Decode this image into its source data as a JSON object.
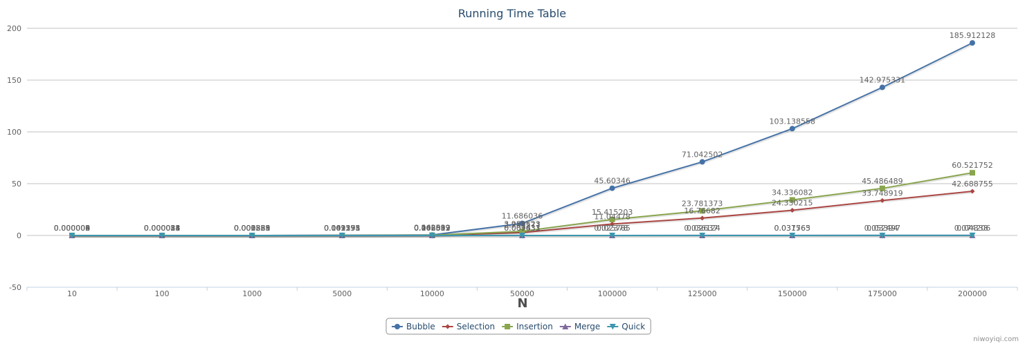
{
  "chart_data": {
    "type": "line",
    "title": "Running Time Table",
    "xlabel": "N",
    "ylabel": "",
    "categories": [
      "10",
      "100",
      "1000",
      "5000",
      "10000",
      "50000",
      "100000",
      "125000",
      "150000",
      "175000",
      "200000"
    ],
    "ylim": [
      -50,
      200
    ],
    "yticks": [
      "-50",
      "0",
      "50",
      "100",
      "150",
      "200"
    ],
    "grid": true,
    "legend_position": "bottom-center",
    "series": [
      {
        "name": "Bubble",
        "color": "#4572A7",
        "marker": "circle",
        "values": [
          9e-06,
          8.8e-05,
          0.006885,
          0.109555,
          0.463039,
          11.686036,
          45.60346,
          71.042502,
          103.138558,
          142.975331,
          185.912128
        ],
        "labels": [
          "0.000009",
          "0.000088",
          "0.006885",
          "0.109555",
          "0.463039",
          "11.686036",
          "45.60346",
          "71.042502",
          "103.138558",
          "142.975331",
          "185.912128"
        ]
      },
      {
        "name": "Selection",
        "color": "#AA4643",
        "marker": "diamond",
        "values": [
          4e-06,
          2.5e-05,
          0.001865,
          0.042391,
          0.166393,
          2.731577,
          11.04478,
          16.76682,
          24.330215,
          33.748919,
          42.688755
        ],
        "labels": [
          "0.000004",
          "0.000025",
          "0.001865",
          "0.042391",
          "0.166393",
          "2.731577",
          "11.04478",
          "16.76682",
          "24.330215",
          "33.748919",
          "42.688755"
        ]
      },
      {
        "name": "Insertion",
        "color": "#89A54E",
        "marker": "square",
        "values": [
          3e-06,
          3.1e-05,
          0.002539,
          0.061271,
          0.242589,
          3.989523,
          15.415203,
          23.781373,
          34.336082,
          45.486489,
          60.521752
        ],
        "labels": [
          "0.000003",
          "0.000031",
          "0.002539",
          "0.061271",
          "0.242589",
          "3.989523",
          "15.415203",
          "23.781373",
          "34.336082",
          "45.486489",
          "60.521752"
        ]
      },
      {
        "name": "Merge",
        "color": "#80699B",
        "marker": "triangle",
        "values": [
          6e-06,
          5.4e-05,
          0.000558,
          0.003198,
          0.006657,
          0.009431,
          0.025785,
          0.036124,
          0.037565,
          0.052497,
          0.074206
        ],
        "labels": [
          "0.000006",
          "0.000054",
          "0.000558",
          "0.003198",
          "0.006657",
          "0.009431",
          "0.025785",
          "0.036124",
          "0.037565",
          "0.052497",
          "0.074206"
        ]
      },
      {
        "name": "Quick",
        "color": "#3D96AE",
        "marker": "triangle-down",
        "values": [
          2e-06,
          1.8e-05,
          0.000221,
          0.001255,
          0.002812,
          0.007633,
          0.02378,
          0.02637,
          0.031763,
          0.03394,
          0.04338
        ],
        "labels": [
          "0.000002",
          "0.000018",
          "0.000221",
          "0.001255",
          "0.002812",
          "0.007633",
          "0.02378",
          "0.02637",
          "0.031763",
          "0.03394",
          "0.04338"
        ]
      }
    ]
  },
  "credits": "niwoyiqi.com"
}
